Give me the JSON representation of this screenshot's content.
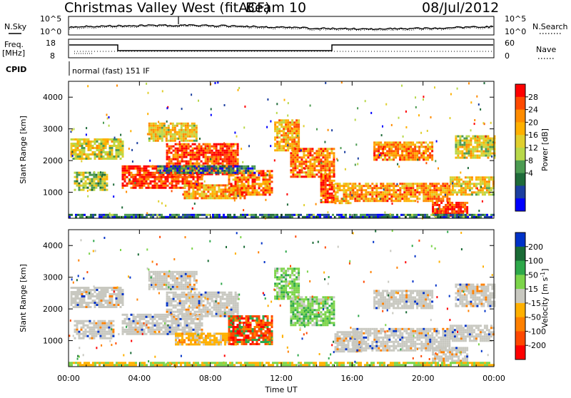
{
  "header": {
    "station": "Christmas Valley West (fitACF)",
    "beam": "Beam 10",
    "date": "08/Jul/2012"
  },
  "status_panels": {
    "nsky_label": "N.Sky",
    "nsky_ticks": [
      "10^5",
      "10^0"
    ],
    "nsearch_label": "N.Search",
    "nsearch_ticks": [
      "10^5",
      "10^0"
    ],
    "freq_label": "Freq.",
    "freq_unit": "[MHz]",
    "freq_ticks": [
      "18",
      "8"
    ],
    "nave_label": "Nave",
    "nave_ticks": [
      "60",
      "0"
    ],
    "cpid_label": "CPID",
    "cpid_text": "normal (fast) 151 IF"
  },
  "chart_data": [
    {
      "type": "heatmap",
      "name": "power-panel",
      "ylabel": "Slant Range [km]",
      "xlabel": "",
      "x_ticks": [
        "00:00",
        "04:00",
        "08:00",
        "12:00",
        "16:00",
        "20:00",
        "00:00"
      ],
      "xlim_hours": [
        0,
        24
      ],
      "ylim": [
        180,
        4500
      ],
      "y_ticks": [
        1000,
        2000,
        3000,
        4000
      ],
      "colorbar": {
        "label": "Power [dB]",
        "ticks": [
          "28",
          "24",
          "20",
          "16",
          "12",
          "8",
          "4"
        ],
        "colors": [
          "#ff0000",
          "#ff4a00",
          "#ff8c00",
          "#ffb000",
          "#e0cf2e",
          "#b8d84a",
          "#4c9b52",
          "#1f6b3a",
          "#1c3fa0",
          "#0000ff"
        ]
      },
      "echo_regions": [
        {
          "t0": 0.1,
          "t1": 3.0,
          "r0": 2050,
          "r1": 2700,
          "level": 0.55
        },
        {
          "t0": 0.3,
          "t1": 2.2,
          "r0": 1050,
          "r1": 1650,
          "level": 0.45
        },
        {
          "t0": 3.0,
          "t1": 7.5,
          "r0": 1150,
          "r1": 1850,
          "level": 0.95
        },
        {
          "t0": 5.5,
          "t1": 9.5,
          "r0": 1600,
          "r1": 2550,
          "level": 0.9
        },
        {
          "t0": 4.5,
          "t1": 7.2,
          "r0": 2650,
          "r1": 3200,
          "level": 0.6
        },
        {
          "t0": 6.5,
          "t1": 10.0,
          "r0": 800,
          "r1": 1250,
          "level": 0.7
        },
        {
          "t0": 9.0,
          "t1": 11.5,
          "r0": 900,
          "r1": 1700,
          "level": 0.8
        },
        {
          "t0": 11.6,
          "t1": 13.0,
          "r0": 2300,
          "r1": 3300,
          "level": 0.7
        },
        {
          "t0": 12.5,
          "t1": 15.0,
          "r0": 1500,
          "r1": 2400,
          "level": 0.8
        },
        {
          "t0": 14.2,
          "t1": 15.0,
          "r0": 700,
          "r1": 1600,
          "level": 0.9
        },
        {
          "t0": 15.0,
          "t1": 16.0,
          "r0": 650,
          "r1": 1300,
          "level": 0.7
        },
        {
          "t0": 16.0,
          "t1": 21.5,
          "r0": 700,
          "r1": 1300,
          "level": 0.75
        },
        {
          "t0": 17.2,
          "t1": 20.5,
          "r0": 2000,
          "r1": 2600,
          "level": 0.75
        },
        {
          "t0": 20.5,
          "t1": 22.5,
          "r0": 250,
          "r1": 700,
          "level": 0.95
        },
        {
          "t0": 21.5,
          "t1": 24.0,
          "r0": 950,
          "r1": 1500,
          "level": 0.6
        },
        {
          "t0": 21.8,
          "t1": 24.0,
          "r0": 2100,
          "r1": 2800,
          "level": 0.55
        },
        {
          "t0": 5.0,
          "t1": 10.5,
          "r0": 1600,
          "r1": 1850,
          "level": 0.2
        },
        {
          "t0": 0.0,
          "t1": 24.0,
          "r0": 200,
          "r1": 320,
          "level": 0.2
        }
      ]
    },
    {
      "type": "heatmap",
      "name": "velocity-panel",
      "ylabel": "Slant Range [km]",
      "xlabel": "Time UT",
      "x_ticks": [
        "00:00",
        "04:00",
        "08:00",
        "12:00",
        "16:00",
        "20:00",
        "00:00"
      ],
      "xlim_hours": [
        0,
        24
      ],
      "ylim": [
        180,
        4500
      ],
      "y_ticks": [
        1000,
        2000,
        3000,
        4000
      ],
      "colorbar": {
        "label": "Velocity [m s",
        "label_superscript": "-1",
        "label_end": "]",
        "ticks": [
          "200",
          "100",
          "50",
          "15",
          "-15",
          "-50",
          "-100",
          "-200"
        ],
        "colors": [
          "#0032c8",
          "#1a6b36",
          "#2ea84a",
          "#7cd44a",
          "#c8c8c0",
          "#ffb000",
          "#ff8000",
          "#ff4800",
          "#ff0000"
        ]
      },
      "echo_regions": [
        {
          "t0": 0.1,
          "t1": 3.0,
          "r0": 2050,
          "r1": 2700,
          "class": "grey"
        },
        {
          "t0": 0.3,
          "t1": 2.5,
          "r0": 1100,
          "r1": 1650,
          "class": "grey"
        },
        {
          "t0": 3.0,
          "t1": 7.5,
          "r0": 1200,
          "r1": 1850,
          "class": "grey"
        },
        {
          "t0": 5.5,
          "t1": 9.5,
          "r0": 1800,
          "r1": 2550,
          "class": "grey"
        },
        {
          "t0": 4.5,
          "t1": 7.2,
          "r0": 2650,
          "r1": 3200,
          "class": "grey"
        },
        {
          "t0": 6.0,
          "t1": 9.5,
          "r0": 900,
          "r1": 1250,
          "class": "orange"
        },
        {
          "t0": 9.0,
          "t1": 11.5,
          "r0": 900,
          "r1": 1800,
          "class": "orange-red"
        },
        {
          "t0": 11.6,
          "t1": 13.0,
          "r0": 2300,
          "r1": 3300,
          "class": "green"
        },
        {
          "t0": 12.5,
          "t1": 15.0,
          "r0": 1500,
          "r1": 2400,
          "class": "green"
        },
        {
          "t0": 15.0,
          "t1": 16.5,
          "r0": 650,
          "r1": 1300,
          "class": "grey"
        },
        {
          "t0": 16.0,
          "t1": 21.5,
          "r0": 700,
          "r1": 1400,
          "class": "grey"
        },
        {
          "t0": 17.2,
          "t1": 20.5,
          "r0": 2000,
          "r1": 2600,
          "class": "grey"
        },
        {
          "t0": 20.5,
          "t1": 22.5,
          "r0": 350,
          "r1": 800,
          "class": "grey"
        },
        {
          "t0": 21.5,
          "t1": 24.0,
          "r0": 1000,
          "r1": 1500,
          "class": "grey"
        },
        {
          "t0": 21.8,
          "t1": 24.0,
          "r0": 2100,
          "r1": 2800,
          "class": "grey"
        },
        {
          "t0": 0.0,
          "t1": 24.0,
          "r0": 200,
          "r1": 330,
          "class": "yellow"
        }
      ]
    }
  ]
}
